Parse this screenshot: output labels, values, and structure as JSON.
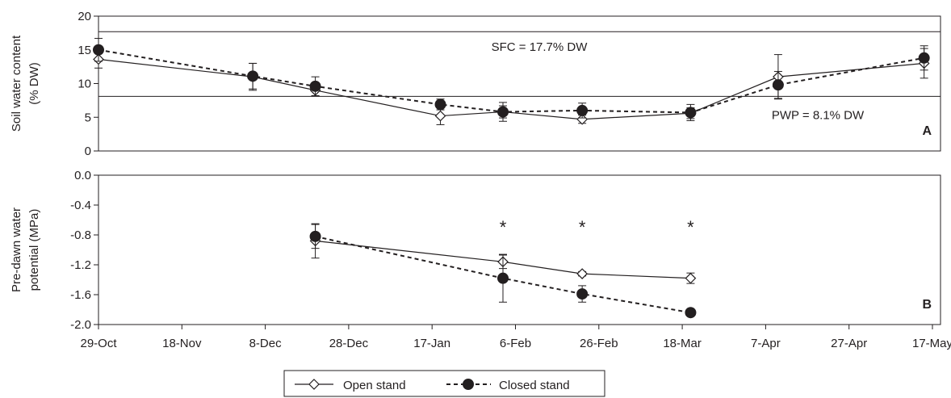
{
  "chart_data": [
    {
      "type": "line",
      "panel": "A",
      "ylabel": [
        "Soil water content",
        "(% DW)"
      ],
      "ylim": [
        0,
        20
      ],
      "yticks": [
        0,
        5,
        10,
        15,
        20
      ],
      "x_tick_labels": [
        "29-Oct",
        "18-Nov",
        "8-Dec",
        "28-Dec",
        "17-Jan",
        "6-Feb",
        "26-Feb",
        "18-Mar",
        "7-Apr",
        "27-Apr",
        "17-May"
      ],
      "x_tick_dates": [
        "2008-10-29",
        "2008-11-18",
        "2008-12-08",
        "2008-12-28",
        "2009-01-17",
        "2009-02-06",
        "2009-02-26",
        "2009-03-18",
        "2009-04-07",
        "2009-04-27",
        "2009-05-17"
      ],
      "reference_lines": [
        {
          "y": 17.7,
          "label": "SFC = 17.7% DW"
        },
        {
          "y": 8.1,
          "label": "PWP = 8.1% DW"
        }
      ],
      "series": [
        {
          "name": "Open stand",
          "x": [
            "2008-10-29",
            "2008-12-05",
            "2008-12-20",
            "2009-01-19",
            "2009-02-03",
            "2009-02-22",
            "2009-03-20",
            "2009-04-10",
            "2009-05-15"
          ],
          "values": [
            13.6,
            11.0,
            9.0,
            5.2,
            5.8,
            4.7,
            5.6,
            11.0,
            13.0
          ],
          "errors": [
            1.3,
            2.0,
            0.8,
            1.3,
            0.9,
            0.6,
            0.8,
            3.3,
            2.2
          ]
        },
        {
          "name": "Closed stand",
          "x": [
            "2008-10-29",
            "2008-12-05",
            "2008-12-20",
            "2009-01-19",
            "2009-02-03",
            "2009-02-22",
            "2009-03-20",
            "2009-04-10",
            "2009-05-15"
          ],
          "values": [
            15.0,
            11.1,
            9.6,
            6.9,
            5.8,
            6.0,
            5.7,
            9.8,
            13.8
          ],
          "errors": [
            1.7,
            1.9,
            1.4,
            0.8,
            1.4,
            1.1,
            1.2,
            2.0,
            1.8
          ]
        }
      ]
    },
    {
      "type": "line",
      "panel": "B",
      "ylabel": [
        "Pre-dawn water",
        "potential (MPa)"
      ],
      "ylim": [
        -2.0,
        0.0
      ],
      "yticks": [
        "0.0",
        "-0.4",
        "-0.8",
        "-1.2",
        "-1.6",
        "-2.0"
      ],
      "significance_markers": [
        {
          "x": "2009-02-03",
          "label": "*"
        },
        {
          "x": "2009-02-22",
          "label": "*"
        },
        {
          "x": "2009-03-20",
          "label": "*"
        }
      ],
      "series": [
        {
          "name": "Open stand",
          "x": [
            "2008-12-20",
            "2009-02-03",
            "2009-02-22",
            "2009-03-20"
          ],
          "values": [
            -0.88,
            -1.16,
            -1.32,
            -1.38
          ],
          "errors": [
            0.23,
            0.09,
            0.03,
            0.07
          ]
        },
        {
          "name": "Closed stand",
          "x": [
            "2008-12-20",
            "2009-02-03",
            "2009-02-22",
            "2009-03-20"
          ],
          "values": [
            -0.82,
            -1.38,
            -1.59,
            -1.84
          ],
          "errors": [
            0.16,
            0.32,
            0.11,
            0.01
          ]
        }
      ]
    }
  ],
  "legend": {
    "placement": "bottom-center",
    "items": [
      {
        "name": "Open stand",
        "marker": "open-diamond",
        "line": "solid"
      },
      {
        "name": "Closed stand",
        "marker": "filled-circle",
        "line": "dashed"
      }
    ]
  },
  "colors": {
    "ink": "#231f20",
    "background": "#ffffff"
  }
}
